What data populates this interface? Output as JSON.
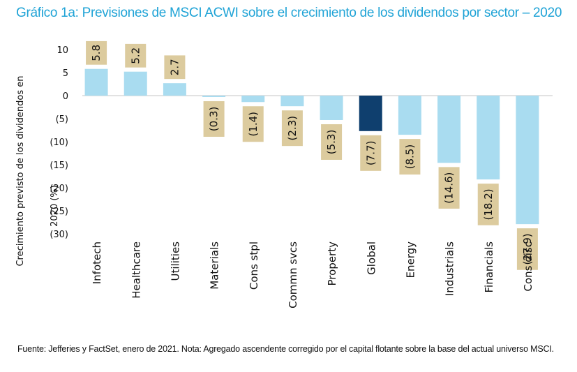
{
  "title": "Gráfico 1a: Previsiones de MSCI ACWI sobre el crecimiento de los dividendos por sector – 2020",
  "footer": "Fuente: Jefferies y FactSet, enero de 2021. Nota: Agregado ascendente corregido por el capital flotante sobre la base del actual universo MSCI.",
  "chart_data": {
    "type": "bar",
    "title": "Gráfico 1a: Previsiones de MSCI ACWI sobre el crecimiento de los dividendos por sector – 2020",
    "xlabel": "",
    "ylabel": "Crecimiento previsto de los dividendos en 2020 (%)",
    "ylim": [
      -30,
      10
    ],
    "yticks": [
      10,
      5,
      0,
      -5,
      -10,
      -15,
      -20,
      -25,
      -30
    ],
    "ytick_labels": [
      "10",
      "5",
      "0",
      "(5)",
      "(10)",
      "(15)",
      "(20)",
      "(25)",
      "(30)"
    ],
    "grid": false,
    "categories": [
      "Infotech",
      "Healthcare",
      "Utilities",
      "Materials",
      "Cons stpl",
      "Commn svcs",
      "Property",
      "Global",
      "Energy",
      "Industrials",
      "Financials",
      "Cons disc"
    ],
    "values": [
      5.8,
      5.2,
      2.7,
      -0.3,
      -1.4,
      -2.3,
      -5.3,
      -7.7,
      -8.5,
      -14.6,
      -18.2,
      -27.9
    ],
    "data_labels": [
      "5.8",
      "5.2",
      "2.7",
      "(0.3)",
      "(1.4)",
      "(2.3)",
      "(5.3)",
      "(7.7)",
      "(8.5)",
      "(14.6)",
      "(18.2)",
      "(27.9)"
    ],
    "highlight_category": "Global",
    "colors": {
      "bar": "#a9dcf0",
      "highlight": "#0f3f6e",
      "label_box": "#dccb9e",
      "axis": "#d9d9d9",
      "title": "#1fa3d6"
    }
  }
}
